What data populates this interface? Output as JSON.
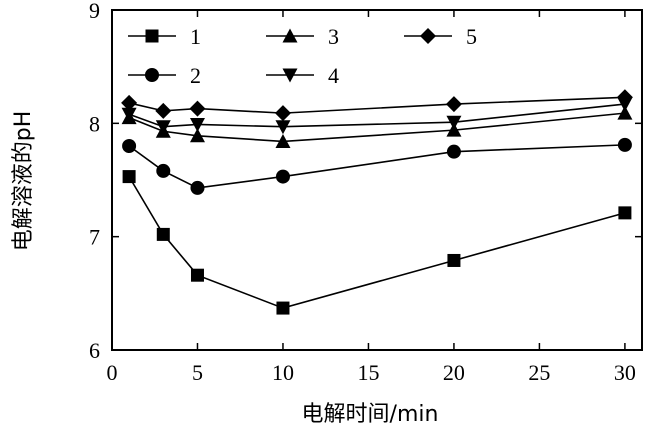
{
  "chart_data": {
    "type": "line",
    "xlabel": "电解时间/min",
    "ylabel": "电解溶液的pH",
    "xlim": [
      0,
      31
    ],
    "ylim": [
      6,
      9
    ],
    "xticks": [
      "0",
      "5",
      "10",
      "15",
      "20",
      "25",
      "30"
    ],
    "yticks": [
      "6",
      "7",
      "8",
      "9"
    ],
    "x": [
      1,
      3,
      5,
      10,
      20,
      30
    ],
    "legend_position": "top",
    "series": [
      {
        "name": "1",
        "marker": "square",
        "values": [
          7.53,
          7.02,
          6.66,
          6.37,
          6.79,
          7.21
        ]
      },
      {
        "name": "2",
        "marker": "circle",
        "values": [
          7.8,
          7.58,
          7.43,
          7.53,
          7.75,
          7.81
        ]
      },
      {
        "name": "3",
        "marker": "triangle-up",
        "values": [
          8.05,
          7.93,
          7.89,
          7.84,
          7.94,
          8.09
        ]
      },
      {
        "name": "4",
        "marker": "triangle-down",
        "values": [
          8.08,
          7.97,
          7.99,
          7.97,
          8.01,
          8.17
        ]
      },
      {
        "name": "5",
        "marker": "diamond",
        "values": [
          8.18,
          8.11,
          8.13,
          8.09,
          8.17,
          8.23
        ]
      }
    ]
  }
}
